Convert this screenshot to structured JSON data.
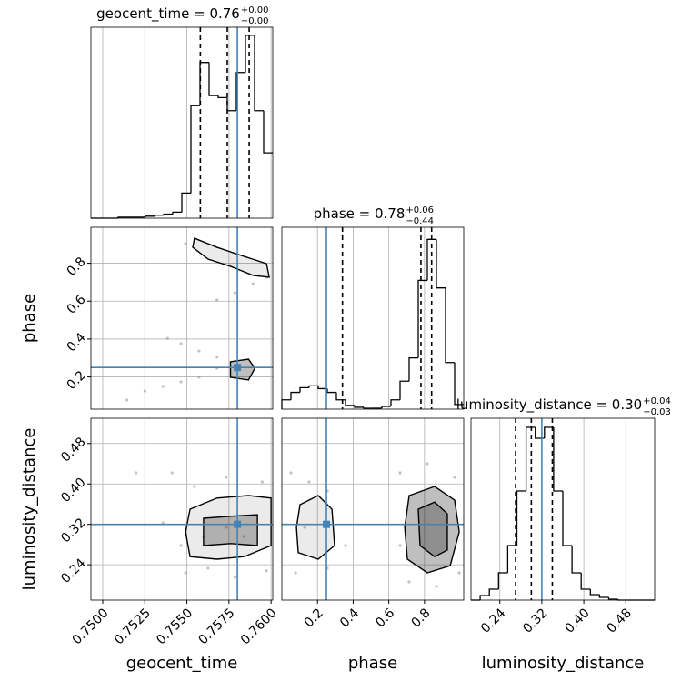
{
  "chart_data": [
    {
      "type": "hist",
      "title": "geocent_time = 0.76",
      "title_upper": "+0.00",
      "title_lower": "−0.00",
      "bins": [
        0.7493,
        0.74984,
        0.75038,
        0.75092,
        0.75146,
        0.752,
        0.75254,
        0.75308,
        0.75362,
        0.75416,
        0.7547,
        0.75524,
        0.75578,
        0.75632,
        0.75686,
        0.7574,
        0.75794,
        0.75848,
        0.75902,
        0.75956,
        0.7601
      ],
      "counts": [
        0,
        0,
        0,
        1,
        1,
        1,
        2,
        3,
        4,
        6,
        25,
        112,
        155,
        122,
        120,
        107,
        145,
        182,
        107,
        65
      ],
      "xlim": [
        0.7493,
        0.7601
      ],
      "ylim": [
        0,
        190
      ],
      "quantiles": [
        0.7558,
        0.7574,
        0.7587
      ],
      "truth": 0.758,
      "color": "#000000",
      "truth_color": "#4682b4",
      "grid": true
    },
    {
      "type": "scatter",
      "ylabel": "phase",
      "x": [
        0.75679,
        0.75786,
        0.75893,
        0.75973,
        0.75385,
        0.75465,
        0.75572,
        0.75679,
        0.75251,
        0.75358,
        0.75465,
        0.75572,
        0.75144,
        0.75679,
        0.75492
      ],
      "y": [
        0.606,
        0.644,
        0.692,
        0.726,
        0.404,
        0.376,
        0.337,
        0.304,
        0.126,
        0.15,
        0.174,
        0.198,
        0.078,
        0.246,
        0.904
      ],
      "contours": [
        {
          "x": [
            0.75545,
            0.75679,
            0.7584,
            0.75973,
            0.75989,
            0.75893,
            0.75759,
            0.75626,
            0.75535
          ],
          "y": [
            0.932,
            0.884,
            0.836,
            0.798,
            0.726,
            0.736,
            0.784,
            0.822,
            0.884
          ]
        },
        {
          "x": [
            0.75759,
            0.75866,
            0.75904,
            0.75866,
            0.75759
          ],
          "y": [
            0.28,
            0.294,
            0.246,
            0.184,
            0.198
          ]
        }
      ],
      "xlim": [
        0.7493,
        0.7601
      ],
      "ylim": [
        0.03,
        0.99
      ],
      "yticks": [
        0.2,
        0.4,
        0.6,
        0.8
      ],
      "truth": [
        0.758,
        0.25
      ],
      "color": "#000000",
      "truth_color": "#4682b4",
      "grid": true
    },
    {
      "type": "hist",
      "title": "phase = 0.78",
      "title_upper": "+0.06",
      "title_lower": "−0.44",
      "bins": [
        0,
        0.051,
        0.102,
        0.153,
        0.204,
        0.255,
        0.306,
        0.357,
        0.408,
        0.459,
        0.51,
        0.561,
        0.612,
        0.663,
        0.714,
        0.765,
        0.816,
        0.867,
        0.918,
        0.969,
        1.02
      ],
      "counts": [
        10,
        18,
        23,
        25,
        22,
        18,
        10,
        4,
        2,
        1,
        1,
        3,
        10,
        30,
        55,
        138,
        182,
        130,
        50,
        5
      ],
      "xlim": [
        0,
        1.02
      ],
      "ylim": [
        0,
        195
      ],
      "quantiles": [
        0.34,
        0.78,
        0.84
      ],
      "truth": 0.25,
      "color": "#000000",
      "truth_color": "#4682b4",
      "grid": true
    },
    {
      "type": "scatter",
      "xlabel": "geocent_time",
      "ylabel": "luminosity_distance",
      "x": [
        0.75412,
        0.75545,
        0.75733,
        0.75947,
        0.75465,
        0.75492,
        0.75626,
        0.75786,
        0.75973,
        0.75358,
        0.75198,
        0.75599,
        0.7584,
        0.75733
      ],
      "y": [
        0.422,
        0.395,
        0.413,
        0.404,
        0.278,
        0.224,
        0.233,
        0.215,
        0.228,
        0.323,
        0.422,
        0.296,
        0.296,
        0.314
      ],
      "contours": [
        {
          "x": [
            0.75519,
            0.75679,
            0.75866,
            0.76,
            0.76,
            0.7584,
            0.75679,
            0.75519,
            0.75492
          ],
          "y": [
            0.35,
            0.372,
            0.377,
            0.372,
            0.278,
            0.256,
            0.251,
            0.256,
            0.305
          ]
        },
        {
          "x": [
            0.75599,
            0.75759,
            0.75919,
            0.75919,
            0.75759,
            0.75599
          ],
          "y": [
            0.332,
            0.336,
            0.339,
            0.278,
            0.282,
            0.278
          ]
        }
      ],
      "xlim": [
        0.7493,
        0.7601
      ],
      "ylim": [
        0.17,
        0.53
      ],
      "xticks": [
        {
          "value": 0.75,
          "label": "0.7500"
        },
        0.7525,
        {
          "value": 0.755,
          "label": "0.7550"
        },
        0.7575,
        {
          "value": 0.76,
          "label": "0.7600"
        }
      ],
      "yticks": [
        0.24,
        0.32,
        {
          "value": 0.4,
          "label": "0.40"
        },
        0.48
      ],
      "truth": [
        0.758,
        0.32
      ],
      "color": "#000000",
      "truth_color": "#4682b4",
      "grid": true
    },
    {
      "type": "scatter",
      "xlabel": "phase",
      "x": [
        0.051,
        0.153,
        0.255,
        0.077,
        0.255,
        0.357,
        0.663,
        0.816,
        0.969,
        0.995,
        0.714,
        0.867,
        0.663,
        0.128
      ],
      "y": [
        0.422,
        0.404,
        0.386,
        0.224,
        0.233,
        0.278,
        0.422,
        0.44,
        0.413,
        0.224,
        0.206,
        0.197,
        0.278,
        0.314
      ],
      "contours": [
        {
          "x": [
            0.102,
            0.204,
            0.281,
            0.296,
            0.204,
            0.092,
            0.082
          ],
          "y": [
            0.359,
            0.377,
            0.35,
            0.278,
            0.251,
            0.264,
            0.314
          ]
        },
        {
          "x": [
            0.714,
            0.857,
            0.969,
            0.995,
            0.944,
            0.816,
            0.704,
            0.689
          ],
          "y": [
            0.377,
            0.395,
            0.368,
            0.305,
            0.238,
            0.224,
            0.251,
            0.314
          ]
        },
        {
          "x": [
            0.765,
            0.857,
            0.928,
            0.928,
            0.857,
            0.775
          ],
          "y": [
            0.35,
            0.364,
            0.341,
            0.269,
            0.256,
            0.278
          ]
        }
      ],
      "xlim": [
        0,
        1.02
      ],
      "ylim": [
        0.17,
        0.53
      ],
      "xticks": [
        0.2,
        0.4,
        0.6,
        0.8
      ],
      "truth": [
        0.25,
        0.32
      ],
      "color": "#000000",
      "truth_color": "#4682b4",
      "grid": true
    },
    {
      "type": "hist",
      "title": "luminosity_distance = 0.30",
      "title_upper": "+0.04",
      "title_lower": "−0.03",
      "xlabel": "luminosity_distance",
      "bins": [
        0.185,
        0.2025,
        0.22,
        0.2375,
        0.255,
        0.2725,
        0.29,
        0.3075,
        0.325,
        0.3425,
        0.36,
        0.3775,
        0.395,
        0.4125,
        0.43,
        0.4475,
        0.465,
        0.4825,
        0.5,
        0.5175,
        0.535
      ],
      "counts": [
        0,
        5,
        12,
        30,
        60,
        120,
        190,
        178,
        190,
        120,
        60,
        30,
        12,
        6,
        3,
        1,
        0,
        0,
        0,
        0
      ],
      "xlim": [
        0.185,
        0.535
      ],
      "ylim": [
        0,
        200
      ],
      "xticks": [
        0.24,
        0.32,
        {
          "value": 0.4,
          "label": "0.40"
        },
        0.48
      ],
      "quantiles": [
        0.27,
        0.3,
        0.34
      ],
      "truth": 0.32,
      "color": "#000000",
      "truth_color": "#4682b4",
      "grid": true
    }
  ]
}
